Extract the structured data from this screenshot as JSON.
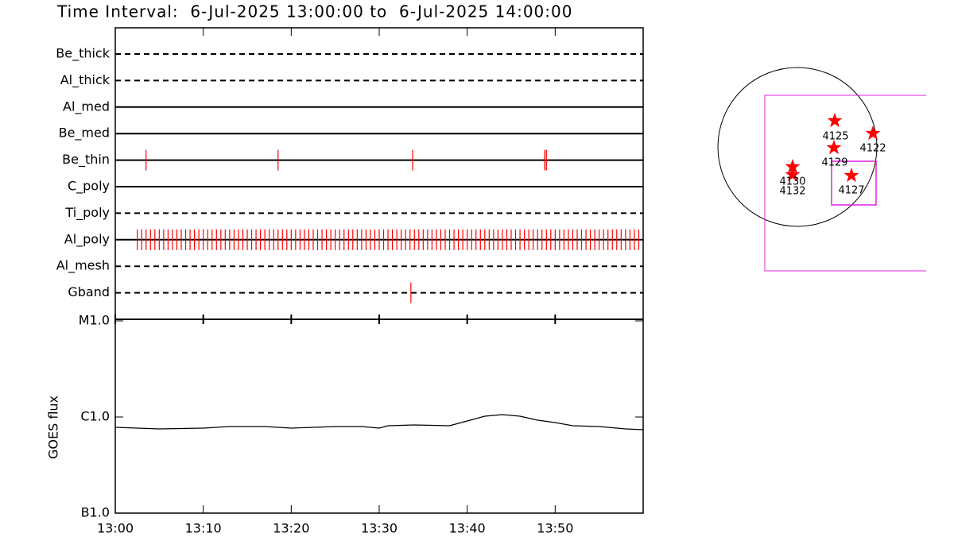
{
  "chart_data": [
    {
      "type": "event",
      "title": "Time Interval:  6-Jul-2025 13:00:00 to  6-Jul-2025 14:00:00",
      "categories": [
        "Be_thick",
        "Al_thick",
        "Al_med",
        "Be_med",
        "Be_thin",
        "C_poly",
        "Ti_poly",
        "Al_poly",
        "Al_mesh",
        "Gband"
      ],
      "styles": [
        "dashed",
        "dashed",
        "solid",
        "solid",
        "solid",
        "solid",
        "dashed",
        "solid",
        "dashed",
        "dashed"
      ],
      "events": [
        [],
        [],
        [],
        [],
        [
          3.5,
          18.5,
          33.8,
          48.8,
          49.0
        ],
        [],
        [],
        [
          2.5,
          3,
          3.5,
          4,
          4.5,
          5,
          5.5,
          6,
          6.5,
          7,
          7.5,
          8,
          8.5,
          9,
          9.5,
          10,
          10.5,
          11,
          11.5,
          12,
          12.5,
          13,
          13.5,
          14,
          14.5,
          15,
          15.5,
          16,
          16.5,
          17,
          17.5,
          18,
          18.5,
          19,
          19.5,
          20,
          20.5,
          21,
          21.5,
          22,
          22.5,
          23,
          23.5,
          24,
          24.5,
          25,
          25.5,
          26,
          26.5,
          27,
          27.5,
          28,
          28.5,
          29,
          29.5,
          30,
          30.5,
          31,
          31.5,
          32,
          32.5,
          33,
          33.5,
          34,
          34.5,
          35,
          35.5,
          36,
          36.5,
          37,
          37.5,
          38,
          38.5,
          39,
          39.5,
          40,
          40.5,
          41,
          41.5,
          42,
          42.5,
          43,
          43.5,
          44,
          44.5,
          45,
          45.5,
          46,
          46.5,
          47,
          47.5,
          48,
          48.5,
          49,
          49.5,
          50,
          50.5,
          51,
          51.5,
          52,
          52.5,
          53,
          53.5,
          54,
          54.5,
          55,
          55.5,
          56,
          56.5,
          57,
          57.5,
          58,
          58.5,
          59,
          59.5
        ],
        [],
        [
          33.6
        ]
      ],
      "color": "#ff0000",
      "xlim": [
        0,
        60
      ]
    },
    {
      "type": "line",
      "ylabel": "GOES flux",
      "x": [
        0,
        5,
        10,
        13,
        17,
        20,
        25,
        28,
        30,
        31,
        34,
        38,
        40,
        42,
        44,
        46,
        48,
        50,
        52,
        55,
        58,
        60
      ],
      "values": [
        7.81e-07,
        7.52e-07,
        7.66e-07,
        7.96e-07,
        7.96e-07,
        7.66e-07,
        7.96e-07,
        7.96e-07,
        7.66e-07,
        8.11e-07,
        8.27e-07,
        8.11e-07,
        9.09e-07,
        1.019e-06,
        1.059e-06,
        1.019e-06,
        9.27e-07,
        8.75e-07,
        8.11e-07,
        7.96e-07,
        7.52e-07,
        7.38e-07
      ],
      "color": "#000000",
      "log_scale": true,
      "ylim": [
        1e-07,
        1e-05
      ],
      "yticks": [
        {
          "value": 1e-05,
          "label": "M1.0"
        },
        {
          "value": 1e-06,
          "label": "C1.0"
        },
        {
          "value": 1e-07,
          "label": "B1.0"
        }
      ],
      "xlim": [
        0,
        60
      ],
      "xticks": [
        {
          "value": 0,
          "label": "13:00"
        },
        {
          "value": 10,
          "label": "13:10"
        },
        {
          "value": 20,
          "label": "13:20"
        },
        {
          "value": 30,
          "label": "13:30"
        },
        {
          "value": 40,
          "label": "13:40"
        },
        {
          "value": 50,
          "label": "13:50"
        }
      ]
    }
  ],
  "regions": {
    "labels": [
      "4125",
      "4122",
      "4129",
      "4130",
      "4132",
      "4127"
    ]
  }
}
